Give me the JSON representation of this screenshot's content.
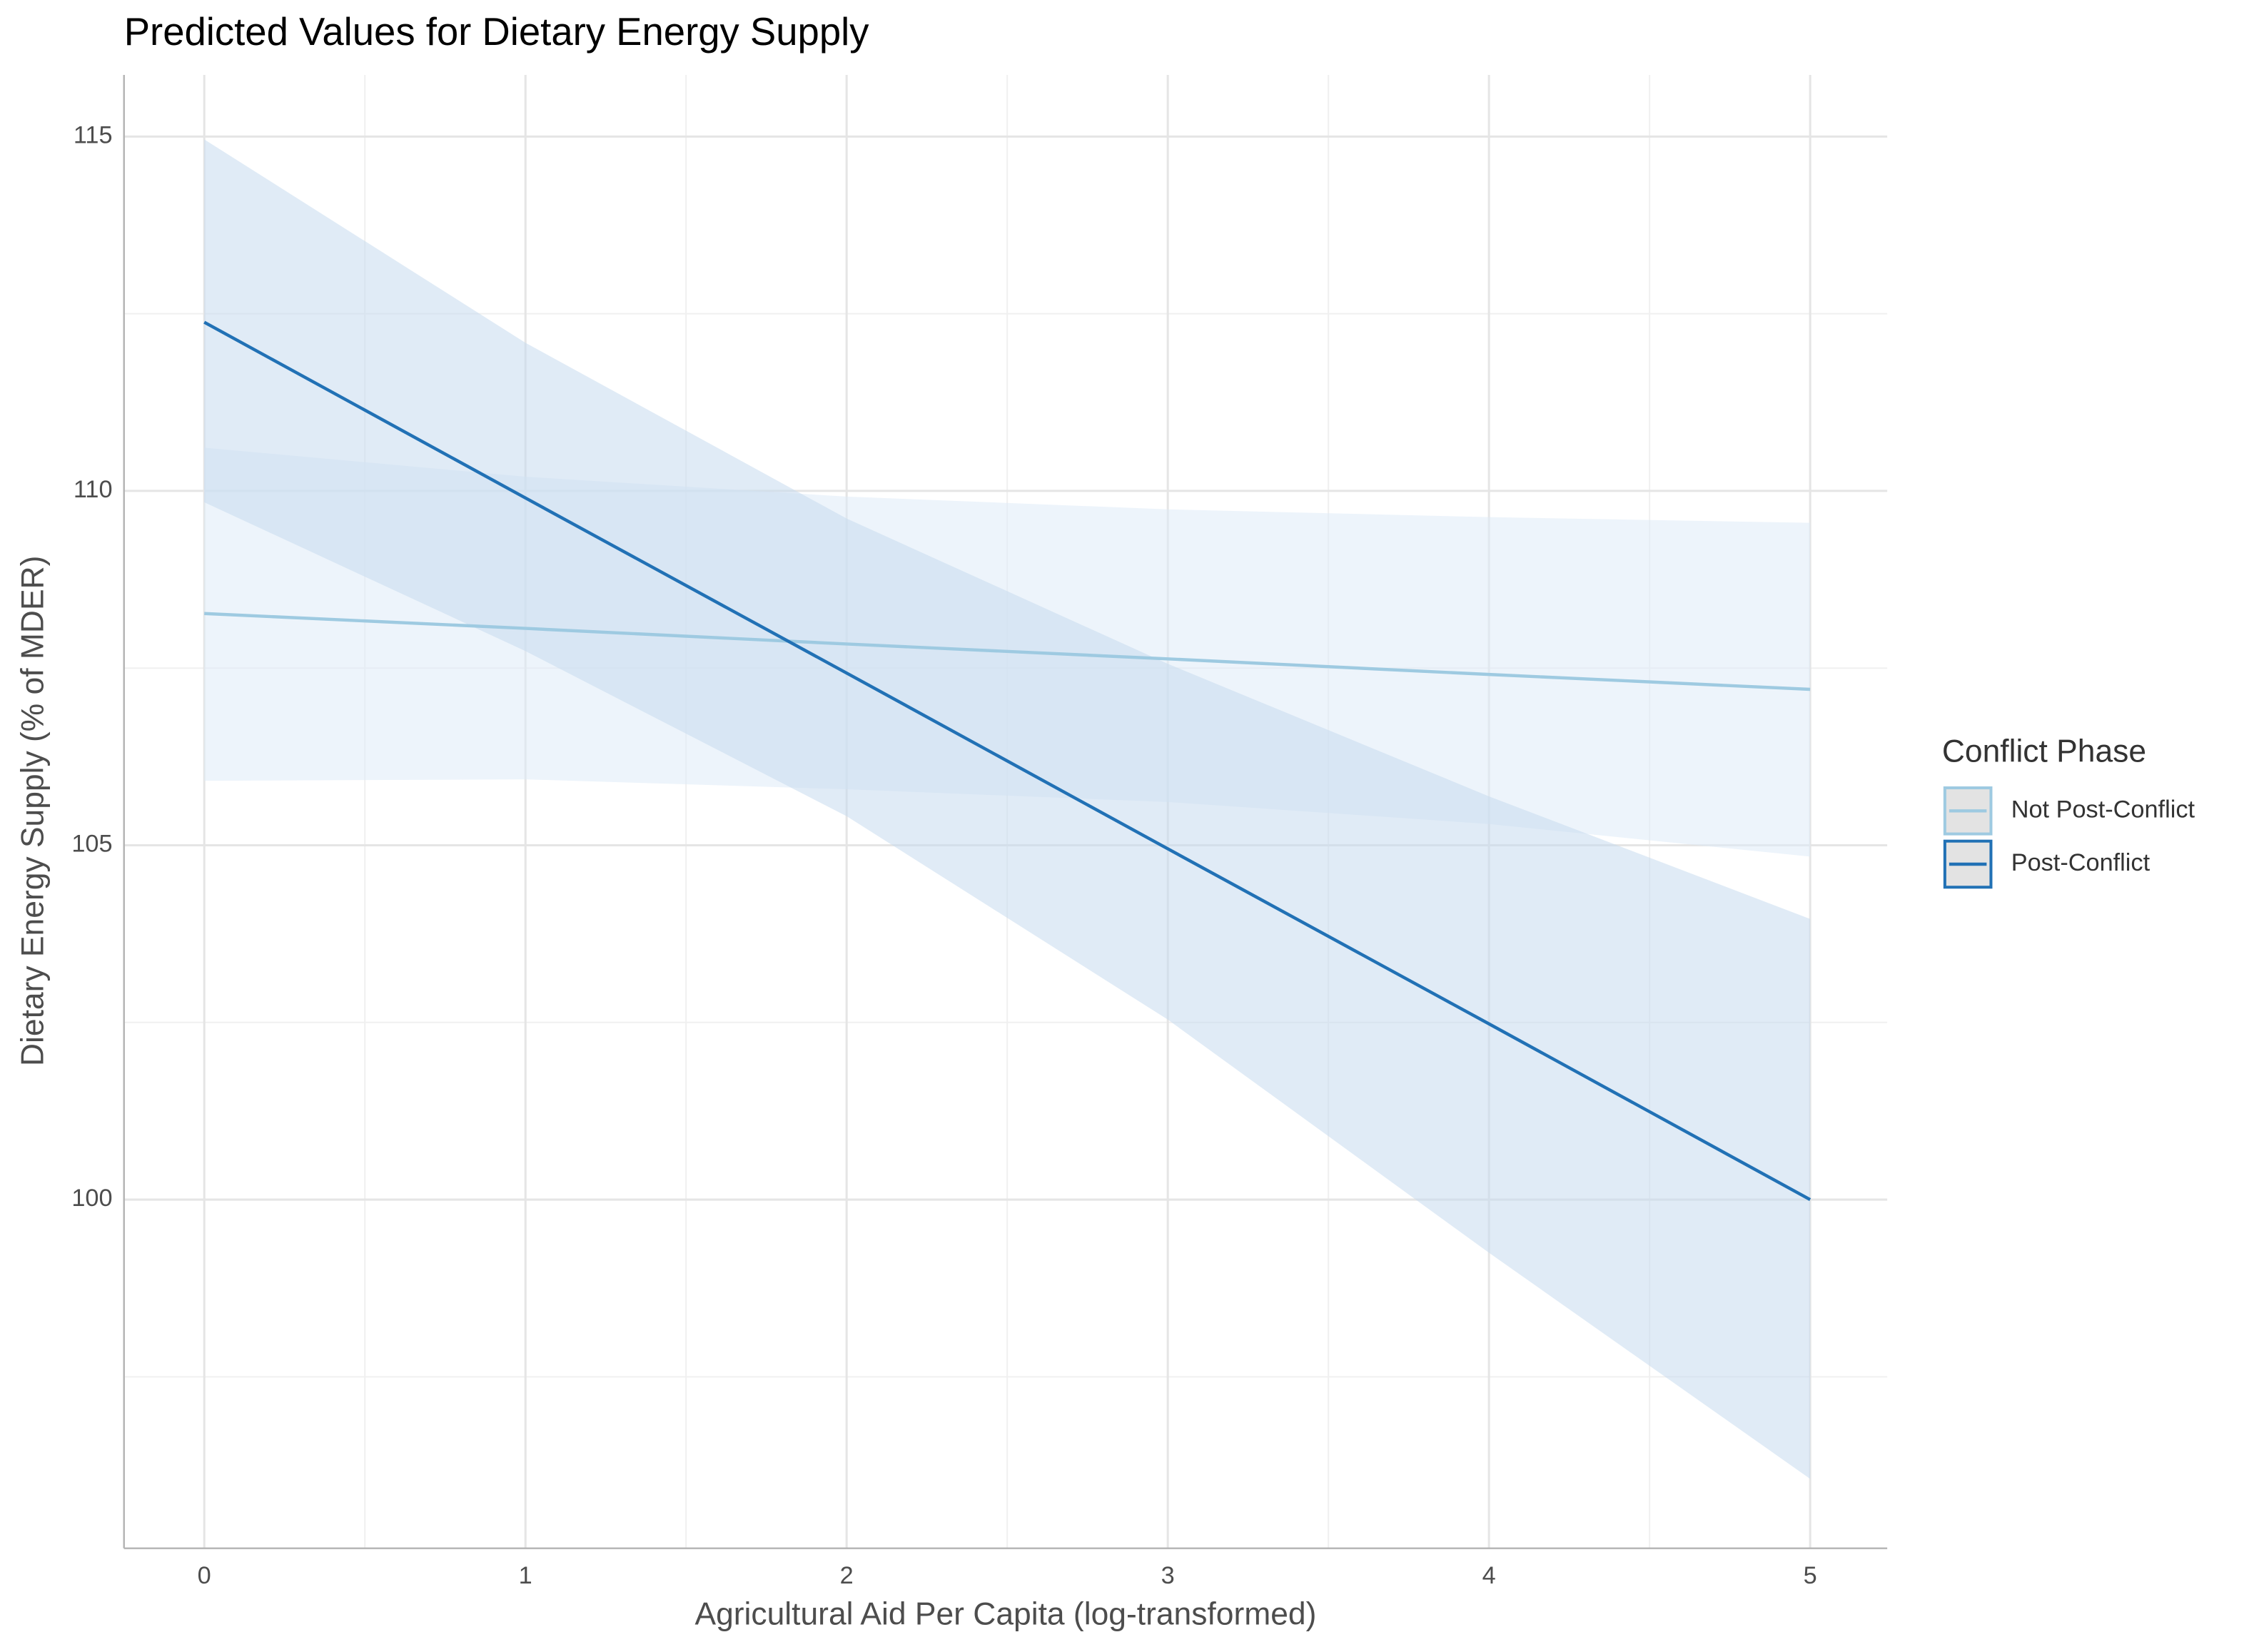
{
  "chart_data": {
    "type": "line",
    "title": "Predicted Values for Dietary Energy Supply",
    "x_label": "Agricultural Aid Per Capita (log-transformed)",
    "y_label": "Dietary Energy Supply (% of MDER)",
    "legend_title": "Conflict Phase",
    "x": [
      0,
      1,
      2,
      3,
      4,
      5
    ],
    "series": [
      {
        "name": "Not Post-Conflict",
        "color": "#9ecae1",
        "band_color": "#deebf7",
        "values": [
          108.27,
          108.06,
          107.84,
          107.63,
          107.41,
          107.2
        ],
        "lower": [
          105.91,
          105.93,
          105.79,
          105.61,
          105.3,
          104.84
        ],
        "upper": [
          110.61,
          110.2,
          109.92,
          109.74,
          109.63,
          109.55
        ]
      },
      {
        "name": "Post-Conflict",
        "color": "#2171b5",
        "band_color": "#c6dbef",
        "values": [
          112.38,
          109.9,
          107.43,
          104.95,
          102.48,
          100.0
        ],
        "lower": [
          109.84,
          107.74,
          105.41,
          102.54,
          99.25,
          96.06
        ],
        "upper": [
          114.96,
          112.09,
          109.61,
          107.56,
          105.69,
          103.96
        ]
      }
    ],
    "xlim": [
      -0.25,
      5.24
    ],
    "ylim": [
      95.08,
      115.87
    ],
    "xticks": [
      0,
      1,
      2,
      3,
      4,
      5
    ],
    "yticks": [
      100,
      105,
      110,
      115
    ],
    "grid": true,
    "legend_position": "right"
  }
}
